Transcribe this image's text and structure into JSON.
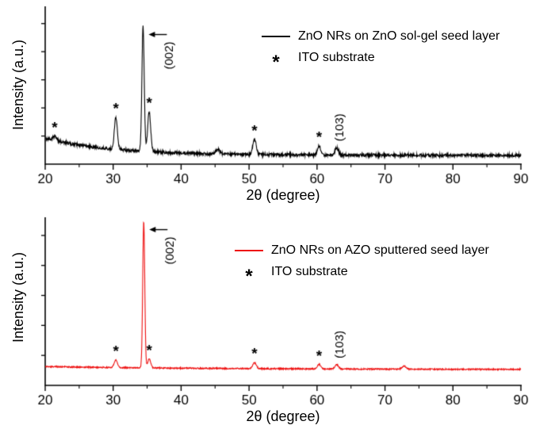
{
  "figure": {
    "xlabel": "2θ (degree)",
    "ylabel": "Intensity (a.u.)",
    "x_min": 20,
    "x_max": 90,
    "xticks": [
      20,
      30,
      40,
      50,
      60,
      70,
      80,
      90
    ],
    "minor_tick_step": 5
  },
  "chart_data": [
    {
      "id": "top-xrd-pattern",
      "type": "line",
      "series_name": "ZnO NRs on ZnO sol-gel seed layer",
      "color": "#000000",
      "xlabel": "2θ (degree)",
      "ylabel": "Intensity (a.u.)",
      "xlim": [
        20,
        90
      ],
      "y_units": "arbitrary units, no y tick labels",
      "legend": {
        "position": "upper right",
        "series_label": "ZnO NRs on ZnO sol-gel seed layer",
        "star_symbol": "*",
        "star_label": "ITO substrate"
      },
      "baseline": {
        "start": 0.17,
        "end": 0.055,
        "decay": 10,
        "noise": 0.012
      },
      "peaks": [
        {
          "two_theta": 21.4,
          "height": 0.03,
          "sigma": 0.3,
          "star": true
        },
        {
          "two_theta": 30.4,
          "height": 0.22,
          "sigma": 0.22,
          "star": true
        },
        {
          "two_theta": 34.4,
          "height": 0.85,
          "sigma": 0.17,
          "label": "(002)",
          "arrow": true
        },
        {
          "two_theta": 35.3,
          "height": 0.27,
          "sigma": 0.22,
          "star": true
        },
        {
          "two_theta": 45.4,
          "height": 0.03,
          "sigma": 0.3
        },
        {
          "two_theta": 50.8,
          "height": 0.1,
          "sigma": 0.26,
          "star": true
        },
        {
          "two_theta": 60.3,
          "height": 0.06,
          "sigma": 0.26,
          "star": true
        },
        {
          "two_theta": 62.9,
          "height": 0.05,
          "sigma": 0.26,
          "label": "(103)"
        }
      ]
    },
    {
      "id": "bottom-xrd-pattern",
      "type": "line",
      "series_name": "ZnO NRs on AZO sputtered seed layer",
      "color": "#ee1111",
      "xlabel": "2θ (degree)",
      "ylabel": "Intensity (a.u.)",
      "xlim": [
        20,
        90
      ],
      "y_units": "arbitrary units, no y tick labels",
      "legend": {
        "position": "upper right",
        "series_label": "ZnO NRs on AZO sputtered seed layer",
        "star_symbol": "*",
        "star_label": "ITO substrate"
      },
      "baseline": {
        "start": 0.12,
        "end": 0.1,
        "decay": 25,
        "noise": 0.005
      },
      "peaks": [
        {
          "two_theta": 30.4,
          "height": 0.05,
          "sigma": 0.24,
          "star": true
        },
        {
          "two_theta": 34.5,
          "height": 0.97,
          "sigma": 0.15,
          "label": "(002)",
          "arrow": true
        },
        {
          "two_theta": 35.3,
          "height": 0.06,
          "sigma": 0.22,
          "star": true
        },
        {
          "two_theta": 50.8,
          "height": 0.04,
          "sigma": 0.26,
          "star": true
        },
        {
          "two_theta": 60.3,
          "height": 0.03,
          "sigma": 0.26,
          "star": true
        },
        {
          "two_theta": 62.9,
          "height": 0.028,
          "sigma": 0.26,
          "label": "(103)"
        },
        {
          "two_theta": 72.8,
          "height": 0.02,
          "sigma": 0.3
        }
      ]
    }
  ]
}
